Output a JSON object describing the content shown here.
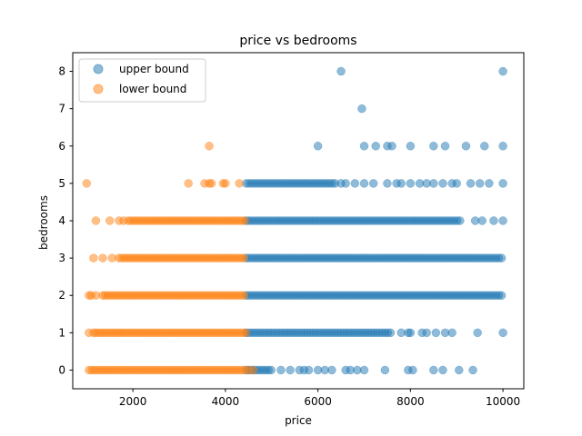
{
  "chart_data": {
    "type": "scatter",
    "title": "price vs bedrooms",
    "xlabel": "price",
    "ylabel": "bedrooms",
    "xlim": [
      700,
      10450
    ],
    "ylim": [
      -0.5,
      8.5
    ],
    "xticks": [
      2000,
      4000,
      6000,
      8000,
      10000
    ],
    "yticks": [
      0,
      1,
      2,
      3,
      4,
      5,
      6,
      7,
      8
    ],
    "grid": false,
    "legend_position": "top-left",
    "series": [
      {
        "name": "upper bound",
        "color": "#1f77b4",
        "dense_ranges": [
          {
            "y": 0,
            "x_start": 4450,
            "x_end": 5000
          },
          {
            "y": 1,
            "x_start": 4450,
            "x_end": 7600
          },
          {
            "y": 2,
            "x_start": 4450,
            "x_end": 10000
          },
          {
            "y": 3,
            "x_start": 4450,
            "x_end": 10000
          },
          {
            "y": 4,
            "x_start": 4450,
            "x_end": 9100
          },
          {
            "y": 5,
            "x_start": 4450,
            "x_end": 6400
          }
        ],
        "points": [
          [
            5200,
            0
          ],
          [
            5400,
            0
          ],
          [
            5600,
            0
          ],
          [
            5700,
            0
          ],
          [
            5800,
            0
          ],
          [
            6000,
            0
          ],
          [
            6150,
            0
          ],
          [
            6300,
            0
          ],
          [
            6600,
            0
          ],
          [
            6700,
            0
          ],
          [
            6850,
            0
          ],
          [
            7000,
            0
          ],
          [
            7450,
            0
          ],
          [
            7950,
            0
          ],
          [
            8050,
            0
          ],
          [
            8500,
            0
          ],
          [
            8700,
            0
          ],
          [
            9050,
            0
          ],
          [
            9350,
            0
          ],
          [
            7800,
            1
          ],
          [
            7950,
            1
          ],
          [
            8000,
            1
          ],
          [
            8250,
            1
          ],
          [
            8350,
            1
          ],
          [
            8550,
            1
          ],
          [
            8750,
            1
          ],
          [
            8900,
            1
          ],
          [
            9450,
            1
          ],
          [
            10000,
            1
          ],
          [
            9400,
            4
          ],
          [
            9550,
            4
          ],
          [
            9800,
            4
          ],
          [
            10000,
            4
          ],
          [
            6500,
            5
          ],
          [
            6600,
            5
          ],
          [
            6800,
            5
          ],
          [
            7000,
            5
          ],
          [
            7200,
            5
          ],
          [
            7500,
            5
          ],
          [
            7700,
            5
          ],
          [
            7800,
            5
          ],
          [
            8000,
            5
          ],
          [
            8200,
            5
          ],
          [
            8350,
            5
          ],
          [
            8500,
            5
          ],
          [
            8700,
            5
          ],
          [
            8900,
            5
          ],
          [
            9000,
            5
          ],
          [
            9300,
            5
          ],
          [
            9500,
            5
          ],
          [
            9700,
            5
          ],
          [
            10000,
            5
          ],
          [
            6000,
            6
          ],
          [
            7000,
            6
          ],
          [
            7250,
            6
          ],
          [
            7500,
            6
          ],
          [
            7600,
            6
          ],
          [
            8000,
            6
          ],
          [
            8500,
            6
          ],
          [
            8750,
            6
          ],
          [
            9200,
            6
          ],
          [
            9600,
            6
          ],
          [
            10000,
            6
          ],
          [
            6950,
            7
          ],
          [
            6500,
            8
          ],
          [
            10000,
            8
          ]
        ]
      },
      {
        "name": "lower bound",
        "color": "#ff7f0e",
        "dense_ranges": [
          {
            "y": 0,
            "x_start": 1050,
            "x_end": 4450
          },
          {
            "y": 1,
            "x_start": 1200,
            "x_end": 4450
          },
          {
            "y": 2,
            "x_start": 1400,
            "x_end": 4450
          },
          {
            "y": 3,
            "x_start": 1700,
            "x_end": 4450
          },
          {
            "y": 4,
            "x_start": 1900,
            "x_end": 4450
          }
        ],
        "points": [
          [
            1000,
            5
          ],
          [
            3200,
            5
          ],
          [
            3550,
            5
          ],
          [
            3650,
            5
          ],
          [
            3700,
            5
          ],
          [
            3950,
            5
          ],
          [
            4000,
            5
          ],
          [
            4300,
            5
          ],
          [
            3650,
            6
          ],
          [
            1200,
            4
          ],
          [
            1500,
            4
          ],
          [
            1700,
            4
          ],
          [
            1800,
            4
          ],
          [
            1150,
            3
          ],
          [
            1350,
            3
          ],
          [
            1550,
            3
          ],
          [
            1050,
            2
          ],
          [
            1100,
            2
          ],
          [
            1200,
            2
          ],
          [
            1350,
            2
          ],
          [
            1050,
            1
          ],
          [
            1150,
            1
          ],
          [
            4500,
            0
          ],
          [
            4600,
            0
          ]
        ]
      }
    ]
  }
}
